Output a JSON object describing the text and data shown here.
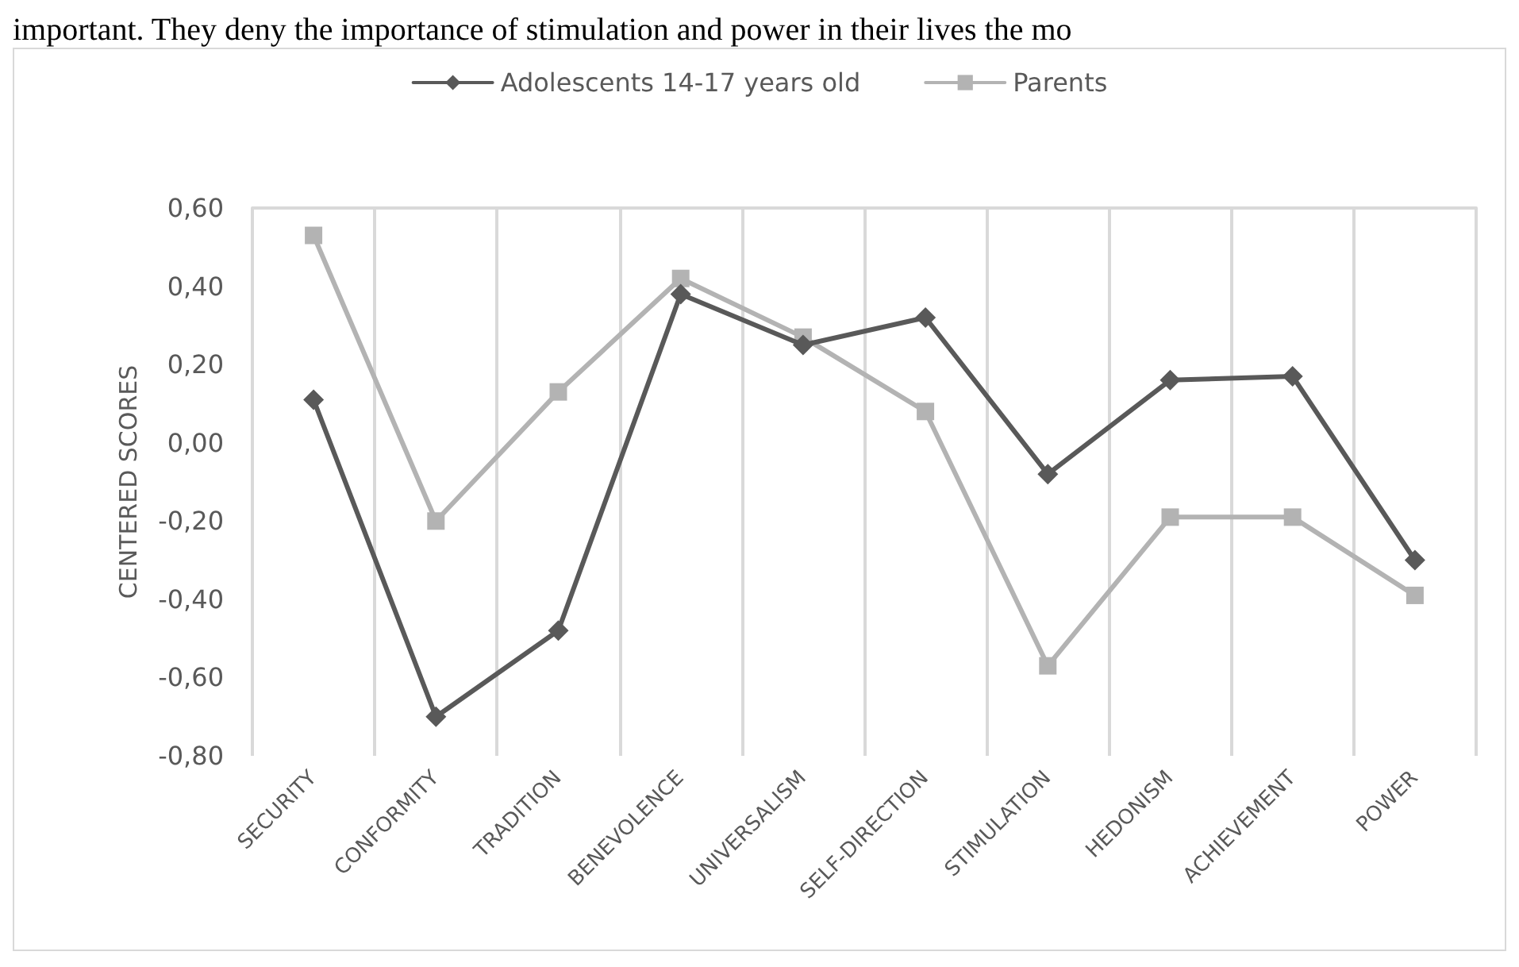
{
  "chart_data": {
    "type": "line",
    "annotations": [
      "important. They deny the importance of stimulation and power in their lives the mo"
    ],
    "ylabel": "CENTERED SCORES",
    "categories": [
      "SECURITY",
      "CONFORMITY",
      "TRADITION",
      "BENEVOLENCE",
      "UNIVERSALISM",
      "SELF-DIRECTION",
      "STIMULATION",
      "HEDONISM",
      "ACHIEVEMENT",
      "POWER"
    ],
    "series": [
      {
        "name": "Adolescents 14-17 years old",
        "color": "#595959",
        "marker": "diamond",
        "values": [
          0.11,
          -0.7,
          -0.48,
          0.38,
          0.25,
          0.32,
          -0.08,
          0.16,
          0.17,
          -0.3
        ]
      },
      {
        "name": "Parents",
        "color": "#b3b3b3",
        "marker": "square",
        "values": [
          0.53,
          -0.2,
          0.13,
          0.42,
          0.27,
          0.08,
          -0.57,
          -0.19,
          -0.19,
          -0.39
        ]
      }
    ],
    "ylim": [
      -0.8,
      0.6
    ],
    "yticks": [
      {
        "value": -0.8,
        "label": "-0,80"
      },
      {
        "value": -0.6,
        "label": "-0,60"
      },
      {
        "value": -0.4,
        "label": "-0,40"
      },
      {
        "value": -0.2,
        "label": "-0,20"
      },
      {
        "value": 0,
        "label": "0,00"
      },
      {
        "value": 0.2,
        "label": "0,20"
      },
      {
        "value": 0.4,
        "label": "0,40"
      },
      {
        "value": 0.6,
        "label": "0,60"
      }
    ],
    "grid": "x",
    "legend": "top",
    "line_style": "solid"
  }
}
